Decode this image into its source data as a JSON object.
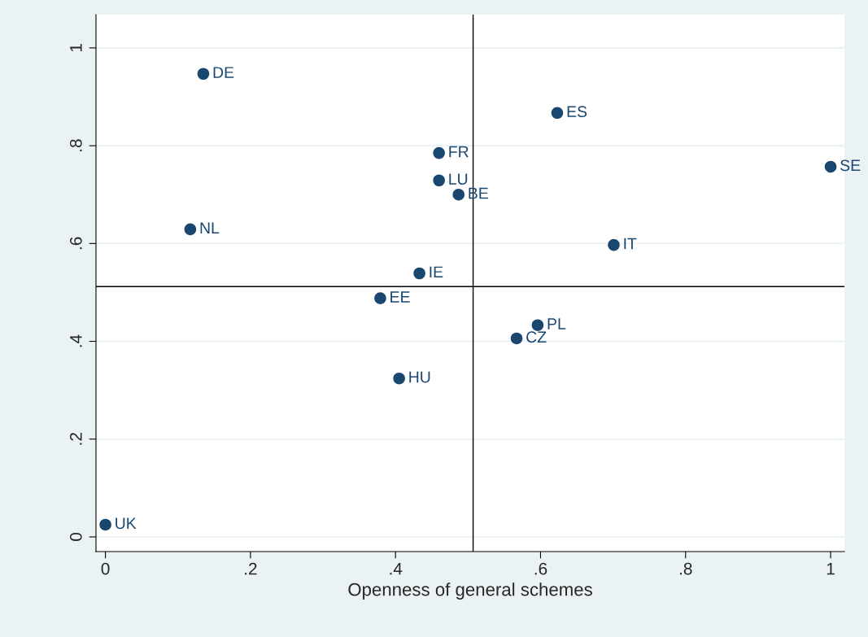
{
  "chart_data": {
    "type": "scatter",
    "xlabel": "Openness of general schemes",
    "series": [
      {
        "color": "#1a476f",
        "x": [
          0.135,
          0.623,
          0.46,
          0.46,
          0.487,
          1.0,
          0.117,
          0.701,
          0.433,
          0.379,
          0.596,
          0.567,
          0.405,
          0.0
        ],
        "values": [
          0.947,
          0.867,
          0.785,
          0.729,
          0.7,
          0.757,
          0.629,
          0.597,
          0.539,
          0.488,
          0.433,
          0.406,
          0.324,
          0.025
        ]
      }
    ],
    "annotations": [
      {
        "text": "DE",
        "x": 0.135,
        "y": 0.947
      },
      {
        "text": "ES",
        "x": 0.623,
        "y": 0.867
      },
      {
        "text": "FR",
        "x": 0.46,
        "y": 0.785
      },
      {
        "text": "LU",
        "x": 0.46,
        "y": 0.729
      },
      {
        "text": "BE",
        "x": 0.487,
        "y": 0.7
      },
      {
        "text": "SE",
        "x": 1.0,
        "y": 0.757
      },
      {
        "text": "NL",
        "x": 0.117,
        "y": 0.629
      },
      {
        "text": "IT",
        "x": 0.701,
        "y": 0.597
      },
      {
        "text": "IE",
        "x": 0.433,
        "y": 0.539
      },
      {
        "text": "EE",
        "x": 0.379,
        "y": 0.488
      },
      {
        "text": "PL",
        "x": 0.596,
        "y": 0.433
      },
      {
        "text": "CZ",
        "x": 0.567,
        "y": 0.406
      },
      {
        "text": "HU",
        "x": 0.405,
        "y": 0.324
      },
      {
        "text": "UK",
        "x": 0.0,
        "y": 0.025
      }
    ],
    "ref_lines": [
      {
        "axis": "x",
        "value": 0.507,
        "color": "#000000"
      },
      {
        "axis": "y",
        "value": 0.512,
        "color": "#000000"
      }
    ],
    "xlim": [
      -0.013,
      1.019
    ],
    "ylim": [
      -0.03,
      1.068
    ],
    "xticks": [
      0,
      {
        "value": 0.2,
        "label": ".2"
      },
      {
        "value": 0.4,
        "label": ".4"
      },
      {
        "value": 0.6,
        "label": ".6"
      },
      {
        "value": 0.8,
        "label": ".8"
      },
      1
    ],
    "yticks": [
      0,
      {
        "value": 0.2,
        "label": ".2"
      },
      {
        "value": 0.4,
        "label": ".4"
      },
      {
        "value": 0.6,
        "label": ".6"
      },
      {
        "value": 0.8,
        "label": ".8"
      },
      1
    ],
    "grid": "y",
    "marker": "circle",
    "legend": false
  }
}
